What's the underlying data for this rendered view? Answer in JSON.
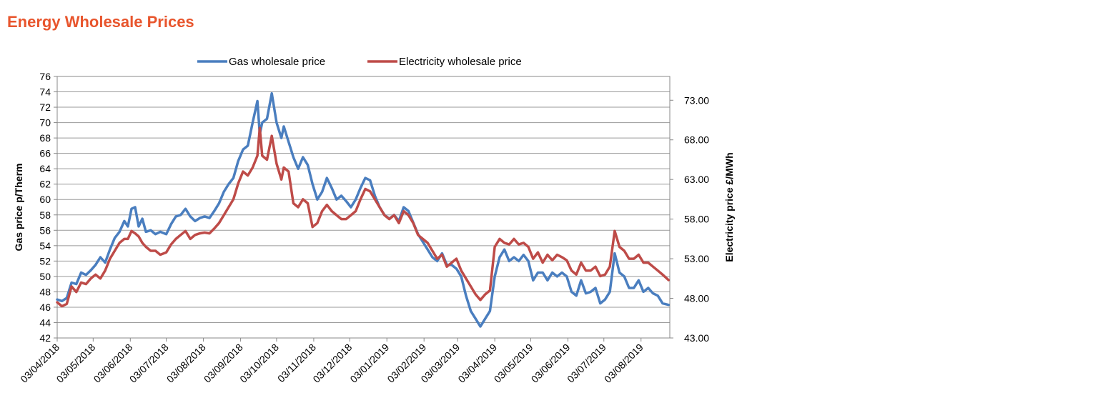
{
  "page": {
    "title": "Energy Wholesale Prices"
  },
  "chart_data": {
    "type": "line",
    "title": "Energy Wholesale Prices",
    "x_type": "date",
    "x_tick_labels": [
      "03/04/2018",
      "03/05/2018",
      "03/06/2018",
      "03/07/2018",
      "03/08/2018",
      "03/09/2018",
      "03/10/2018",
      "03/11/2018",
      "03/12/2018",
      "03/01/2019",
      "03/02/2019",
      "03/03/2019",
      "03/04/2019",
      "03/05/2019",
      "03/06/2019",
      "03/07/2019",
      "03/08/2019"
    ],
    "xlim": [
      "03/04/2018",
      "27/08/2019"
    ],
    "y_left": {
      "label": "Gas price p/Therm",
      "ylim": [
        42,
        76
      ],
      "ticks": [
        42,
        44,
        46,
        48,
        50,
        52,
        54,
        56,
        58,
        60,
        62,
        64,
        66,
        68,
        70,
        72,
        74,
        76
      ]
    },
    "y_right": {
      "label": "Electricity price £/MWh",
      "ylim": [
        43,
        76
      ],
      "ticks": [
        "43.00",
        "48.00",
        "53.00",
        "58.00",
        "63.00",
        "68.00",
        "73.00"
      ]
    },
    "grid": true,
    "legend_position": "top-center",
    "series": [
      {
        "name": "Gas wholesale price",
        "axis": "left",
        "color": "#4a7ebf",
        "points": [
          [
            "03/04/2018",
            47.0
          ],
          [
            "07/04/2018",
            46.8
          ],
          [
            "11/04/2018",
            47.2
          ],
          [
            "15/04/2018",
            49.2
          ],
          [
            "19/04/2018",
            49.0
          ],
          [
            "23/04/2018",
            50.5
          ],
          [
            "27/04/2018",
            50.2
          ],
          [
            "01/05/2018",
            50.8
          ],
          [
            "05/05/2018",
            51.5
          ],
          [
            "09/05/2018",
            52.5
          ],
          [
            "13/05/2018",
            51.8
          ],
          [
            "17/05/2018",
            53.5
          ],
          [
            "21/05/2018",
            55.0
          ],
          [
            "25/05/2018",
            55.8
          ],
          [
            "29/05/2018",
            57.2
          ],
          [
            "01/06/2018",
            56.5
          ],
          [
            "04/06/2018",
            58.8
          ],
          [
            "07/06/2018",
            59.0
          ],
          [
            "10/06/2018",
            56.5
          ],
          [
            "13/06/2018",
            57.5
          ],
          [
            "16/06/2018",
            55.8
          ],
          [
            "20/06/2018",
            56.0
          ],
          [
            "24/06/2018",
            55.5
          ],
          [
            "28/06/2018",
            55.8
          ],
          [
            "03/07/2018",
            55.5
          ],
          [
            "07/07/2018",
            56.8
          ],
          [
            "11/07/2018",
            57.8
          ],
          [
            "15/07/2018",
            58.0
          ],
          [
            "19/07/2018",
            58.8
          ],
          [
            "23/07/2018",
            57.8
          ],
          [
            "27/07/2018",
            57.2
          ],
          [
            "31/07/2018",
            57.6
          ],
          [
            "04/08/2018",
            57.8
          ],
          [
            "08/08/2018",
            57.6
          ],
          [
            "12/08/2018",
            58.5
          ],
          [
            "16/08/2018",
            59.5
          ],
          [
            "20/08/2018",
            61.0
          ],
          [
            "24/08/2018",
            62.0
          ],
          [
            "28/08/2018",
            62.8
          ],
          [
            "01/09/2018",
            65.0
          ],
          [
            "05/09/2018",
            66.5
          ],
          [
            "09/09/2018",
            67.0
          ],
          [
            "13/09/2018",
            70.0
          ],
          [
            "17/09/2018",
            72.8
          ],
          [
            "19/09/2018",
            68.5
          ],
          [
            "21/09/2018",
            70.0
          ],
          [
            "25/09/2018",
            70.5
          ],
          [
            "29/09/2018",
            73.8
          ],
          [
            "03/10/2018",
            70.0
          ],
          [
            "07/10/2018",
            68.0
          ],
          [
            "09/10/2018",
            69.5
          ],
          [
            "13/10/2018",
            67.5
          ],
          [
            "17/10/2018",
            65.5
          ],
          [
            "21/10/2018",
            64.0
          ],
          [
            "25/10/2018",
            65.5
          ],
          [
            "29/10/2018",
            64.5
          ],
          [
            "02/11/2018",
            62.0
          ],
          [
            "06/11/2018",
            60.0
          ],
          [
            "10/11/2018",
            61.0
          ],
          [
            "14/11/2018",
            62.8
          ],
          [
            "18/11/2018",
            61.5
          ],
          [
            "22/11/2018",
            60.0
          ],
          [
            "26/11/2018",
            60.5
          ],
          [
            "30/11/2018",
            59.8
          ],
          [
            "04/12/2018",
            59.0
          ],
          [
            "08/12/2018",
            60.0
          ],
          [
            "12/12/2018",
            61.5
          ],
          [
            "16/12/2018",
            62.8
          ],
          [
            "20/12/2018",
            62.5
          ],
          [
            "24/12/2018",
            60.5
          ],
          [
            "28/12/2018",
            59.0
          ],
          [
            "01/01/2019",
            58.0
          ],
          [
            "05/01/2019",
            57.5
          ],
          [
            "09/01/2019",
            58.0
          ],
          [
            "13/01/2019",
            57.2
          ],
          [
            "17/01/2019",
            59.0
          ],
          [
            "21/01/2019",
            58.5
          ],
          [
            "25/01/2019",
            57.0
          ],
          [
            "29/01/2019",
            55.5
          ],
          [
            "02/02/2019",
            54.5
          ],
          [
            "06/02/2019",
            53.5
          ],
          [
            "10/02/2019",
            52.5
          ],
          [
            "14/02/2019",
            52.0
          ],
          [
            "18/02/2019",
            53.0
          ],
          [
            "22/02/2019",
            51.5
          ],
          [
            "26/02/2019",
            51.5
          ],
          [
            "02/03/2019",
            51.0
          ],
          [
            "06/03/2019",
            50.0
          ],
          [
            "10/03/2019",
            47.5
          ],
          [
            "14/03/2019",
            45.5
          ],
          [
            "18/03/2019",
            44.5
          ],
          [
            "22/03/2019",
            43.5
          ],
          [
            "26/03/2019",
            44.5
          ],
          [
            "30/03/2019",
            45.5
          ],
          [
            "03/04/2019",
            50.0
          ],
          [
            "07/04/2019",
            52.5
          ],
          [
            "11/04/2019",
            53.5
          ],
          [
            "15/04/2019",
            52.0
          ],
          [
            "19/04/2019",
            52.5
          ],
          [
            "23/04/2019",
            52.0
          ],
          [
            "27/04/2019",
            52.8
          ],
          [
            "01/05/2019",
            52.0
          ],
          [
            "05/05/2019",
            49.5
          ],
          [
            "09/05/2019",
            50.5
          ],
          [
            "13/05/2019",
            50.5
          ],
          [
            "17/05/2019",
            49.5
          ],
          [
            "21/05/2019",
            50.5
          ],
          [
            "25/05/2019",
            50.0
          ],
          [
            "29/05/2019",
            50.5
          ],
          [
            "02/06/2019",
            50.0
          ],
          [
            "06/06/2019",
            48.0
          ],
          [
            "10/06/2019",
            47.5
          ],
          [
            "14/06/2019",
            49.5
          ],
          [
            "18/06/2019",
            47.8
          ],
          [
            "22/06/2019",
            48.0
          ],
          [
            "26/06/2019",
            48.5
          ],
          [
            "30/06/2019",
            46.5
          ],
          [
            "04/07/2019",
            47.0
          ],
          [
            "08/07/2019",
            48.0
          ],
          [
            "12/07/2019",
            53.0
          ],
          [
            "16/07/2019",
            50.5
          ],
          [
            "20/07/2019",
            50.0
          ],
          [
            "24/07/2019",
            48.5
          ],
          [
            "28/07/2019",
            48.5
          ],
          [
            "01/08/2019",
            49.5
          ],
          [
            "05/08/2019",
            48.0
          ],
          [
            "09/08/2019",
            48.5
          ],
          [
            "13/08/2019",
            47.8
          ],
          [
            "17/08/2019",
            47.5
          ],
          [
            "21/08/2019",
            46.5
          ],
          [
            "26/08/2019",
            46.3
          ]
        ]
      },
      {
        "name": "Electricity wholesale price",
        "axis": "right",
        "color": "#be4b48",
        "points": [
          [
            "03/04/2018",
            47.5
          ],
          [
            "07/04/2018",
            47.0
          ],
          [
            "11/04/2018",
            47.3
          ],
          [
            "15/04/2018",
            49.5
          ],
          [
            "19/04/2018",
            48.8
          ],
          [
            "23/04/2018",
            50.0
          ],
          [
            "27/04/2018",
            49.8
          ],
          [
            "01/05/2018",
            50.5
          ],
          [
            "05/05/2018",
            51.0
          ],
          [
            "09/05/2018",
            50.5
          ],
          [
            "13/05/2018",
            51.5
          ],
          [
            "17/05/2018",
            53.0
          ],
          [
            "21/05/2018",
            54.0
          ],
          [
            "25/05/2018",
            55.0
          ],
          [
            "29/05/2018",
            55.5
          ],
          [
            "01/06/2018",
            55.5
          ],
          [
            "04/06/2018",
            56.5
          ],
          [
            "07/06/2018",
            56.2
          ],
          [
            "10/06/2018",
            55.8
          ],
          [
            "13/06/2018",
            55.0
          ],
          [
            "16/06/2018",
            54.5
          ],
          [
            "20/06/2018",
            54.0
          ],
          [
            "24/06/2018",
            54.0
          ],
          [
            "28/06/2018",
            53.5
          ],
          [
            "03/07/2018",
            53.8
          ],
          [
            "07/07/2018",
            54.8
          ],
          [
            "11/07/2018",
            55.5
          ],
          [
            "15/07/2018",
            56.0
          ],
          [
            "19/07/2018",
            56.5
          ],
          [
            "23/07/2018",
            55.5
          ],
          [
            "27/07/2018",
            56.0
          ],
          [
            "31/07/2018",
            56.2
          ],
          [
            "04/08/2018",
            56.3
          ],
          [
            "08/08/2018",
            56.2
          ],
          [
            "12/08/2018",
            56.8
          ],
          [
            "16/08/2018",
            57.5
          ],
          [
            "20/08/2018",
            58.5
          ],
          [
            "24/08/2018",
            59.5
          ],
          [
            "28/08/2018",
            60.5
          ],
          [
            "01/09/2018",
            62.5
          ],
          [
            "05/09/2018",
            64.0
          ],
          [
            "09/09/2018",
            63.5
          ],
          [
            "13/09/2018",
            64.5
          ],
          [
            "17/09/2018",
            66.0
          ],
          [
            "19/09/2018",
            69.5
          ],
          [
            "21/09/2018",
            66.0
          ],
          [
            "25/09/2018",
            65.5
          ],
          [
            "29/09/2018",
            68.5
          ],
          [
            "03/10/2018",
            65.0
          ],
          [
            "07/10/2018",
            63.0
          ],
          [
            "09/10/2018",
            64.5
          ],
          [
            "13/10/2018",
            64.0
          ],
          [
            "17/10/2018",
            60.0
          ],
          [
            "21/10/2018",
            59.5
          ],
          [
            "25/10/2018",
            60.5
          ],
          [
            "29/10/2018",
            60.0
          ],
          [
            "02/11/2018",
            57.0
          ],
          [
            "06/11/2018",
            57.5
          ],
          [
            "10/11/2018",
            59.0
          ],
          [
            "14/11/2018",
            59.8
          ],
          [
            "18/11/2018",
            59.0
          ],
          [
            "22/11/2018",
            58.5
          ],
          [
            "26/11/2018",
            58.0
          ],
          [
            "30/11/2018",
            58.0
          ],
          [
            "04/12/2018",
            58.5
          ],
          [
            "08/12/2018",
            59.0
          ],
          [
            "12/12/2018",
            60.5
          ],
          [
            "16/12/2018",
            61.8
          ],
          [
            "20/12/2018",
            61.5
          ],
          [
            "24/12/2018",
            60.5
          ],
          [
            "28/12/2018",
            59.5
          ],
          [
            "01/01/2019",
            58.5
          ],
          [
            "05/01/2019",
            58.0
          ],
          [
            "09/01/2019",
            58.5
          ],
          [
            "13/01/2019",
            57.5
          ],
          [
            "17/01/2019",
            59.0
          ],
          [
            "21/01/2019",
            58.5
          ],
          [
            "25/01/2019",
            57.5
          ],
          [
            "29/01/2019",
            56.0
          ],
          [
            "02/02/2019",
            55.5
          ],
          [
            "06/02/2019",
            55.0
          ],
          [
            "10/02/2019",
            54.0
          ],
          [
            "14/02/2019",
            53.0
          ],
          [
            "18/02/2019",
            53.5
          ],
          [
            "22/02/2019",
            52.0
          ],
          [
            "26/02/2019",
            52.5
          ],
          [
            "02/03/2019",
            53.0
          ],
          [
            "06/03/2019",
            51.5
          ],
          [
            "10/03/2019",
            50.5
          ],
          [
            "14/03/2019",
            49.5
          ],
          [
            "18/03/2019",
            48.5
          ],
          [
            "22/03/2019",
            47.8
          ],
          [
            "26/03/2019",
            48.5
          ],
          [
            "30/03/2019",
            49.0
          ],
          [
            "03/04/2019",
            54.5
          ],
          [
            "07/04/2019",
            55.5
          ],
          [
            "11/04/2019",
            55.0
          ],
          [
            "15/04/2019",
            54.8
          ],
          [
            "19/04/2019",
            55.5
          ],
          [
            "23/04/2019",
            54.8
          ],
          [
            "27/04/2019",
            55.0
          ],
          [
            "01/05/2019",
            54.5
          ],
          [
            "05/05/2019",
            53.0
          ],
          [
            "09/05/2019",
            53.8
          ],
          [
            "13/05/2019",
            52.5
          ],
          [
            "17/05/2019",
            53.5
          ],
          [
            "21/05/2019",
            52.8
          ],
          [
            "25/05/2019",
            53.5
          ],
          [
            "29/05/2019",
            53.2
          ],
          [
            "02/06/2019",
            52.8
          ],
          [
            "06/06/2019",
            51.5
          ],
          [
            "10/06/2019",
            51.0
          ],
          [
            "14/06/2019",
            52.5
          ],
          [
            "18/06/2019",
            51.5
          ],
          [
            "22/06/2019",
            51.5
          ],
          [
            "26/06/2019",
            52.0
          ],
          [
            "30/06/2019",
            50.8
          ],
          [
            "04/07/2019",
            51.0
          ],
          [
            "08/07/2019",
            52.0
          ],
          [
            "12/07/2019",
            56.5
          ],
          [
            "16/07/2019",
            54.5
          ],
          [
            "20/07/2019",
            54.0
          ],
          [
            "24/07/2019",
            53.0
          ],
          [
            "28/07/2019",
            53.0
          ],
          [
            "01/08/2019",
            53.5
          ],
          [
            "05/08/2019",
            52.5
          ],
          [
            "09/08/2019",
            52.5
          ],
          [
            "13/08/2019",
            52.0
          ],
          [
            "17/08/2019",
            51.5
          ],
          [
            "21/08/2019",
            51.0
          ],
          [
            "26/08/2019",
            50.3
          ]
        ]
      }
    ]
  }
}
